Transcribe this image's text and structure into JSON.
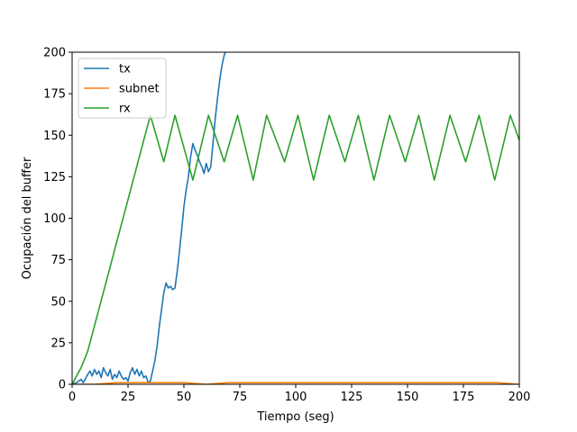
{
  "chart_data": {
    "type": "line",
    "xlabel": "Tiempo (seg)",
    "ylabel": "Ocupación del buffer",
    "xlim": [
      0,
      200
    ],
    "ylim": [
      0,
      200
    ],
    "x_ticks": [
      0,
      25,
      50,
      75,
      100,
      125,
      150,
      175,
      200
    ],
    "y_ticks": [
      0,
      25,
      50,
      75,
      100,
      125,
      150,
      175,
      200
    ],
    "grid": false,
    "legend_position": "top-left",
    "series": [
      {
        "name": "tx",
        "color": "#1f77b4",
        "points": [
          [
            0,
            0
          ],
          [
            2,
            1
          ],
          [
            4,
            3
          ],
          [
            5,
            1
          ],
          [
            7,
            6
          ],
          [
            8,
            8
          ],
          [
            9,
            5
          ],
          [
            10,
            9
          ],
          [
            11,
            6
          ],
          [
            12,
            8
          ],
          [
            13,
            4
          ],
          [
            14,
            10
          ],
          [
            15,
            7
          ],
          [
            16,
            5
          ],
          [
            17,
            9
          ],
          [
            18,
            3
          ],
          [
            19,
            6
          ],
          [
            20,
            4
          ],
          [
            21,
            8
          ],
          [
            22,
            5
          ],
          [
            23,
            3
          ],
          [
            24,
            4
          ],
          [
            25,
            2
          ],
          [
            26,
            7
          ],
          [
            27,
            10
          ],
          [
            28,
            6
          ],
          [
            29,
            9
          ],
          [
            30,
            5
          ],
          [
            31,
            8
          ],
          [
            32,
            4
          ],
          [
            33,
            5
          ],
          [
            34,
            1
          ],
          [
            35,
            2
          ],
          [
            36,
            8
          ],
          [
            37,
            14
          ],
          [
            38,
            23
          ],
          [
            39,
            35
          ],
          [
            40,
            45
          ],
          [
            41,
            55
          ],
          [
            42,
            61
          ],
          [
            43,
            58
          ],
          [
            44,
            59
          ],
          [
            45,
            57
          ],
          [
            46,
            58
          ],
          [
            47,
            68
          ],
          [
            48,
            80
          ],
          [
            49,
            93
          ],
          [
            50,
            107
          ],
          [
            51,
            117
          ],
          [
            52,
            125
          ],
          [
            53,
            137
          ],
          [
            54,
            145
          ],
          [
            55,
            141
          ],
          [
            56,
            138
          ],
          [
            57,
            134
          ],
          [
            58,
            131
          ],
          [
            59,
            127
          ],
          [
            60,
            133
          ],
          [
            61,
            128
          ],
          [
            62,
            131
          ],
          [
            63,
            145
          ],
          [
            64,
            160
          ],
          [
            65,
            172
          ],
          [
            66,
            183
          ],
          [
            67,
            192
          ],
          [
            68,
            198
          ],
          [
            69,
            202
          ]
        ]
      },
      {
        "name": "subnet",
        "color": "#ff7f0e",
        "points": [
          [
            0,
            0
          ],
          [
            10,
            0
          ],
          [
            20,
            1
          ],
          [
            30,
            1
          ],
          [
            40,
            1
          ],
          [
            50,
            1
          ],
          [
            60,
            0
          ],
          [
            70,
            1
          ],
          [
            80,
            1
          ],
          [
            90,
            1
          ],
          [
            100,
            1
          ],
          [
            110,
            1
          ],
          [
            120,
            1
          ],
          [
            130,
            1
          ],
          [
            140,
            1
          ],
          [
            150,
            1
          ],
          [
            160,
            1
          ],
          [
            170,
            1
          ],
          [
            180,
            1
          ],
          [
            190,
            1
          ],
          [
            200,
            0
          ]
        ]
      },
      {
        "name": "rx",
        "color": "#2ca02c",
        "points": [
          [
            0,
            0
          ],
          [
            4,
            10
          ],
          [
            7,
            20
          ],
          [
            35,
            162
          ],
          [
            41,
            134
          ],
          [
            46,
            162
          ],
          [
            54,
            123
          ],
          [
            61,
            162
          ],
          [
            68,
            134
          ],
          [
            74,
            162
          ],
          [
            81,
            123
          ],
          [
            87,
            162
          ],
          [
            95,
            134
          ],
          [
            101,
            162
          ],
          [
            108,
            123
          ],
          [
            115,
            162
          ],
          [
            122,
            134
          ],
          [
            128,
            162
          ],
          [
            135,
            123
          ],
          [
            142,
            162
          ],
          [
            149,
            134
          ],
          [
            155,
            162
          ],
          [
            162,
            123
          ],
          [
            169,
            162
          ],
          [
            176,
            134
          ],
          [
            182,
            162
          ],
          [
            189,
            123
          ],
          [
            196,
            162
          ],
          [
            200,
            147
          ]
        ]
      }
    ]
  }
}
